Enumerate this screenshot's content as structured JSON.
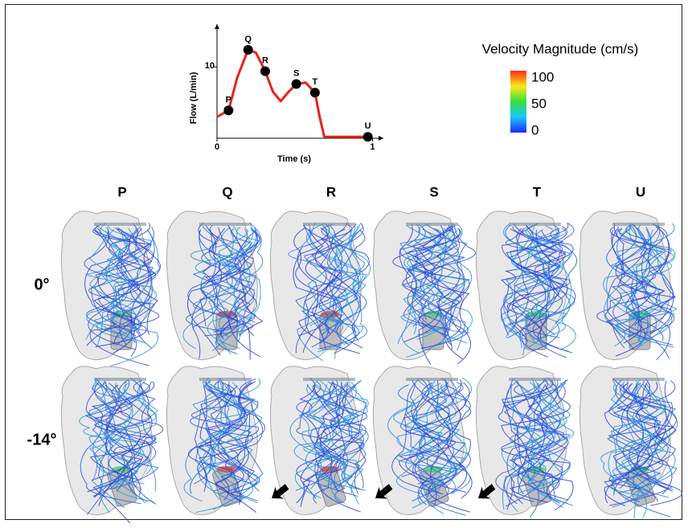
{
  "chart_data": {
    "type": "line",
    "xlabel": "Time (s)",
    "ylabel": "Flow (L/min)",
    "x": [
      0,
      0.074,
      0.13,
      0.2,
      0.25,
      0.31,
      0.36,
      0.41,
      0.46,
      0.51,
      0.57,
      0.63,
      0.66,
      0.69,
      0.97,
      1.0
    ],
    "values": [
      3.0,
      3.9,
      8.5,
      12.4,
      12.0,
      9.4,
      6.5,
      5.2,
      6.5,
      7.6,
      7.8,
      6.4,
      3.0,
      0.2,
      0.2,
      0.3
    ],
    "color": "#e8231b",
    "points": {
      "labels": [
        "P",
        "Q",
        "R",
        "S",
        "T",
        "U"
      ],
      "x": [
        0.074,
        0.2,
        0.31,
        0.51,
        0.63,
        0.97
      ],
      "values": [
        3.9,
        12.4,
        9.4,
        7.6,
        6.4,
        0.2
      ],
      "color": "#000000"
    },
    "xlim": [
      0,
      1.07
    ],
    "ylim": [
      0,
      16
    ],
    "xticks": [
      0,
      1
    ],
    "yticks": [
      10
    ]
  },
  "colorbar": {
    "title": "Velocity Magnitude (cm/s)",
    "clim": [
      0,
      100
    ],
    "ticks": [
      0,
      50,
      100
    ]
  },
  "columns": [
    "P",
    "Q",
    "R",
    "S",
    "T",
    "U"
  ],
  "rows": [
    "0°",
    "-14°"
  ]
}
